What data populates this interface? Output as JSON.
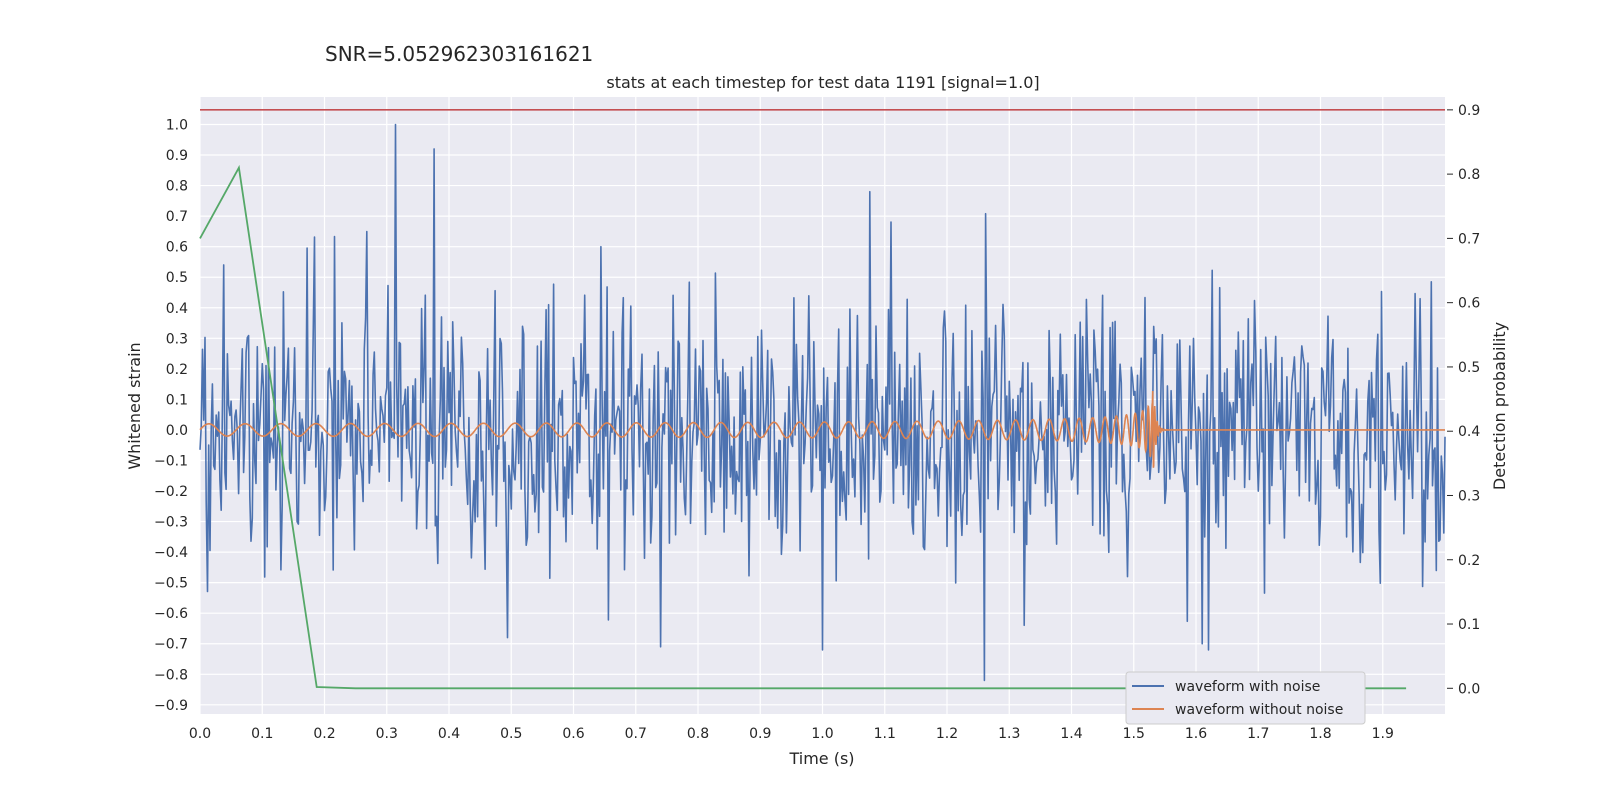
{
  "chart_data": {
    "type": "line",
    "suptitle": "SNR=5.052962303161621",
    "title": "stats at each timestep for test data 1191 [signal=1.0]",
    "xlabel": "Time (s)",
    "ylabel_left": "Whitened strain",
    "ylabel_right": "Detection probability",
    "xlim": [
      0.0,
      2.0
    ],
    "ylim_left": [
      -0.93,
      1.09
    ],
    "ylim_right": [
      -0.04,
      0.92
    ],
    "x_ticks": [
      "0.0",
      "0.1",
      "0.2",
      "0.3",
      "0.4",
      "0.5",
      "0.6",
      "0.7",
      "0.8",
      "0.9",
      "1.0",
      "1.1",
      "1.2",
      "1.3",
      "1.4",
      "1.5",
      "1.6",
      "1.7",
      "1.8",
      "1.9"
    ],
    "y_left_ticks": [
      "1.0",
      "0.9",
      "0.8",
      "0.7",
      "0.6",
      "0.5",
      "0.4",
      "0.3",
      "0.2",
      "0.1",
      "0.0",
      "−0.1",
      "−0.2",
      "−0.3",
      "−0.4",
      "−0.5",
      "−0.6",
      "−0.7",
      "−0.8",
      "−0.9"
    ],
    "y_right_ticks": [
      "0.9",
      "0.8",
      "0.7",
      "0.6",
      "0.5",
      "0.4",
      "0.3",
      "0.2",
      "0.1",
      "0.0"
    ],
    "grid": true,
    "legend_position": "lower-right",
    "colors": {
      "noisy": "#4c72b0",
      "clean": "#dd8452",
      "probability": "#55a868",
      "threshold": "#c44e52",
      "axes_bg": "#eaeaf2",
      "grid": "#ffffff"
    },
    "series": [
      {
        "name": "waveform with noise",
        "axis": "left",
        "note": "noisy whitened strain, approx. uniform 0.002 s sampling over 0–2 s",
        "range": [
          -0.82,
          1.0
        ],
        "peaks": [
          {
            "x": 0.313,
            "y": 1.0
          },
          {
            "x": 0.375,
            "y": 0.92
          },
          {
            "x": 1.075,
            "y": 0.78
          },
          {
            "x": 1.26,
            "y": -0.82
          },
          {
            "x": 1.0,
            "y": -0.72
          },
          {
            "x": 0.493,
            "y": -0.68
          },
          {
            "x": 0.74,
            "y": -0.71
          },
          {
            "x": 1.61,
            "y": -0.7
          }
        ]
      },
      {
        "name": "waveform without noise",
        "axis": "left",
        "note": "inspiral chirp; amplitude grows to ~0.2 near merger at ~1.53 s then ~0",
        "amplitude_start": 0.02,
        "amplitude_peak": 0.2,
        "merger_time": 1.53,
        "freq_start_hz": 17
      },
      {
        "name": "detection probability",
        "axis": "right",
        "x": [
          0.0,
          0.0625,
          0.1875,
          0.25,
          0.3125,
          0.375,
          0.4375,
          0.5,
          0.5625,
          0.625,
          0.6875,
          0.75,
          0.8125,
          0.875,
          0.9375,
          1.0,
          1.0625,
          1.125,
          1.1875,
          1.25,
          1.3125,
          1.375,
          1.4375,
          1.5,
          1.5625,
          1.625,
          1.6875,
          1.75,
          1.8125,
          1.875,
          1.9375
        ],
        "y": [
          0.7,
          0.81,
          0.002,
          0.0,
          0.0,
          0.0,
          0.0,
          0.0,
          0.0,
          0.0,
          0.0,
          0.0,
          0.0,
          0.0,
          0.0,
          0.0,
          0.0,
          0.0,
          0.0,
          0.0,
          0.0,
          0.0,
          0.0,
          0.0,
          0.0,
          0.0,
          0.0,
          0.0,
          0.0,
          0.0,
          0.0
        ]
      },
      {
        "name": "threshold",
        "axis": "right",
        "y": 0.9
      }
    ],
    "legend": [
      {
        "label": "waveform with noise",
        "color": "#4c72b0"
      },
      {
        "label": "waveform without noise",
        "color": "#dd8452"
      }
    ]
  }
}
